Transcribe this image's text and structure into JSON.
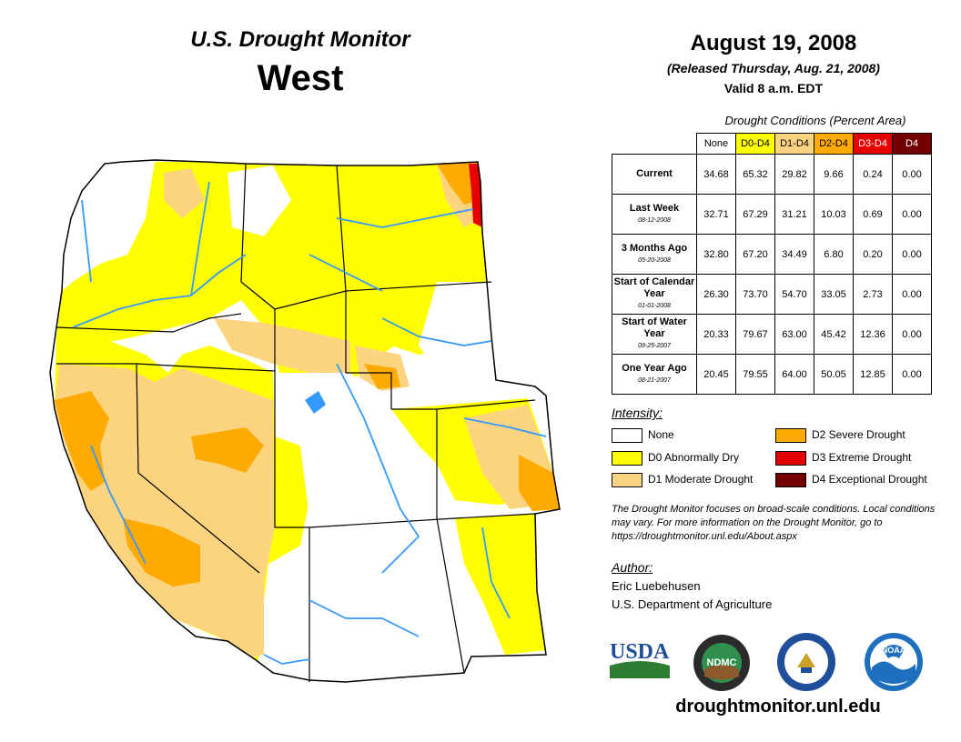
{
  "header": {
    "title": "U.S. Drought Monitor",
    "region": "West",
    "date": "August 19, 2008",
    "released": "(Released Thursday, Aug. 21, 2008)",
    "valid": "Valid 8 a.m. EDT"
  },
  "conditions": {
    "title": "Drought Conditions (Percent Area)",
    "columns": [
      "None",
      "D0-D4",
      "D1-D4",
      "D2-D4",
      "D3-D4",
      "D4"
    ],
    "rows": [
      {
        "label": "Current",
        "date": "",
        "values": [
          "34.68",
          "65.32",
          "29.82",
          "9.66",
          "0.24",
          "0.00"
        ]
      },
      {
        "label": "Last Week",
        "date": "08-12-2008",
        "values": [
          "32.71",
          "67.29",
          "31.21",
          "10.03",
          "0.69",
          "0.00"
        ]
      },
      {
        "label": "3 Months Ago",
        "date": "05-20-2008",
        "values": [
          "32.80",
          "67.20",
          "34.49",
          "6.80",
          "0.20",
          "0.00"
        ]
      },
      {
        "label": "Start of Calendar Year",
        "date": "01-01-2008",
        "values": [
          "26.30",
          "73.70",
          "54.70",
          "33.05",
          "2.73",
          "0.00"
        ]
      },
      {
        "label": "Start of Water Year",
        "date": "09-25-2007",
        "values": [
          "20.33",
          "79.67",
          "63.00",
          "45.42",
          "12.36",
          "0.00"
        ]
      },
      {
        "label": "One Year Ago",
        "date": "08-21-2007",
        "values": [
          "20.45",
          "79.55",
          "64.00",
          "50.05",
          "12.85",
          "0.00"
        ]
      }
    ]
  },
  "legend": {
    "title": "Intensity:",
    "items": [
      {
        "label": "None",
        "color": "#ffffff"
      },
      {
        "label": "D0 Abnormally Dry",
        "color": "#ffff00"
      },
      {
        "label": "D1 Moderate Drought",
        "color": "#fcd37f"
      },
      {
        "label": "D2 Severe Drought",
        "color": "#ffaa00"
      },
      {
        "label": "D3 Extreme Drought",
        "color": "#e60000"
      },
      {
        "label": "D4 Exceptional Drought",
        "color": "#730000"
      }
    ]
  },
  "note": "The Drought Monitor focuses on broad-scale conditions. Local conditions may vary. For more information on the Drought Monitor, go to https://droughtmonitor.unl.edu/About.aspx",
  "author": {
    "title": "Author:",
    "name": "Eric Luebehusen",
    "org": "U.S. Department of Agriculture"
  },
  "logos": {
    "usda": "USDA",
    "ndmc": "NDMC",
    "noaa": "NOAA"
  },
  "url": "droughtmonitor.unl.edu",
  "colors": {
    "none": "#ffffff",
    "d0": "#ffff00",
    "d1": "#fcd37f",
    "d2": "#ffaa00",
    "d3": "#e60000",
    "d4": "#730000",
    "rivers": "#3399ff"
  }
}
